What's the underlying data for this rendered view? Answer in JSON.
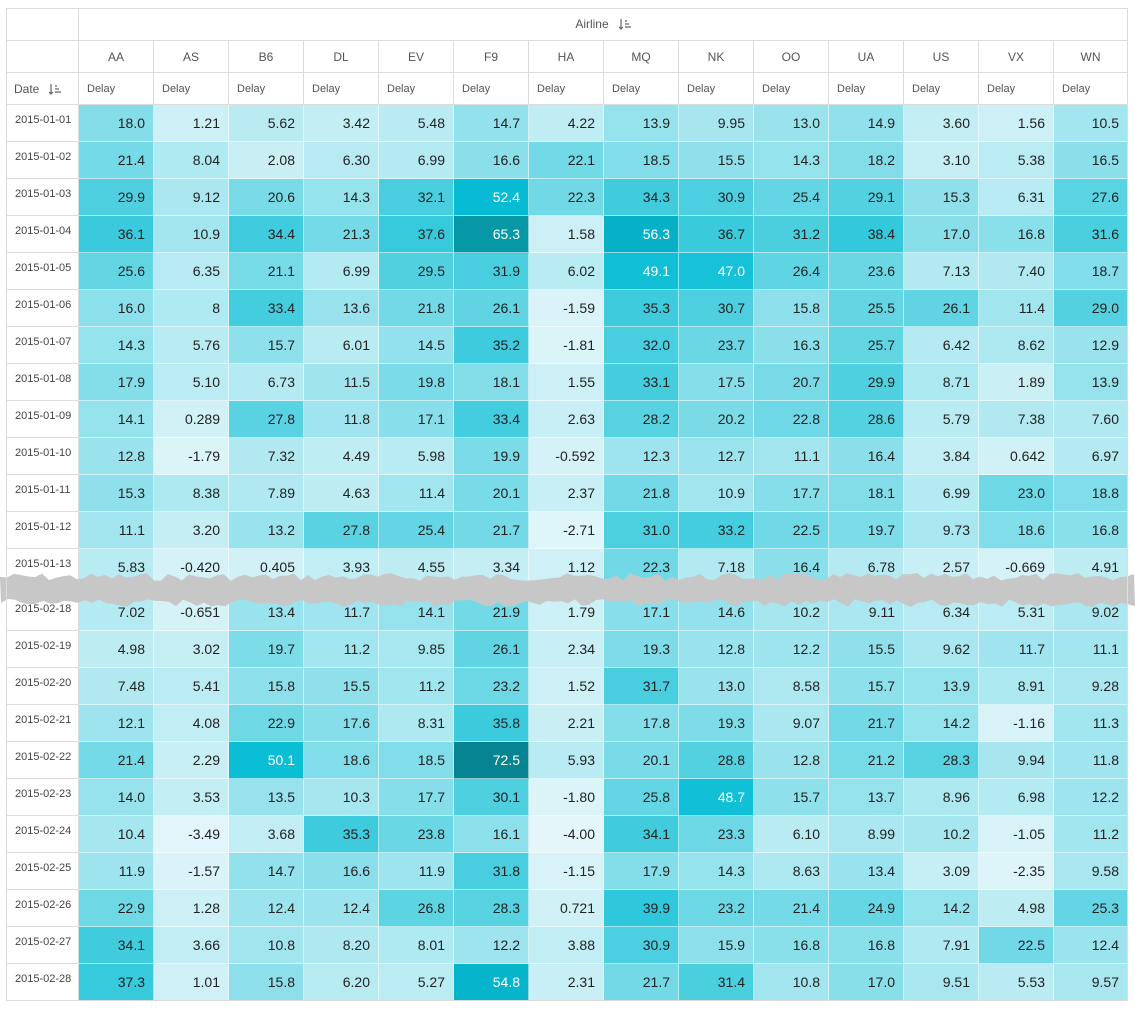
{
  "header": {
    "group_label": "Airline",
    "date_label": "Date"
  },
  "colors": {
    "low": "#e4f6fa",
    "mid": "#4fd0e0",
    "high": "#06bcd4",
    "max": "#07838f",
    "tear": "#c7c7c7"
  },
  "chart_data": {
    "type": "heatmap",
    "columns": [
      "AA",
      "AS",
      "B6",
      "DL",
      "EV",
      "F9",
      "HA",
      "MQ",
      "NK",
      "OO",
      "UA",
      "US",
      "VX",
      "WN"
    ],
    "measure_label": "Delay",
    "rows_top": [
      {
        "date": "2015-01-01",
        "values": [
          "18.0",
          "1.21",
          "5.62",
          "3.42",
          "5.48",
          "14.7",
          "4.22",
          "13.9",
          "9.95",
          "13.0",
          "14.9",
          "3.60",
          "1.56",
          "10.5"
        ]
      },
      {
        "date": "2015-01-02",
        "values": [
          "21.4",
          "8.04",
          "2.08",
          "6.30",
          "6.99",
          "16.6",
          "22.1",
          "18.5",
          "15.5",
          "14.3",
          "18.2",
          "3.10",
          "5.38",
          "16.5"
        ]
      },
      {
        "date": "2015-01-03",
        "values": [
          "29.9",
          "9.12",
          "20.6",
          "14.3",
          "32.1",
          "52.4",
          "22.3",
          "34.3",
          "30.9",
          "25.4",
          "29.1",
          "15.3",
          "6.31",
          "27.6"
        ]
      },
      {
        "date": "2015-01-04",
        "values": [
          "36.1",
          "10.9",
          "34.4",
          "21.3",
          "37.6",
          "65.3",
          "1.58",
          "56.3",
          "36.7",
          "31.2",
          "38.4",
          "17.0",
          "16.8",
          "31.6"
        ]
      },
      {
        "date": "2015-01-05",
        "values": [
          "25.6",
          "6.35",
          "21.1",
          "6.99",
          "29.5",
          "31.9",
          "6.02",
          "49.1",
          "47.0",
          "26.4",
          "23.6",
          "7.13",
          "7.40",
          "18.7"
        ]
      },
      {
        "date": "2015-01-06",
        "values": [
          "16.0",
          "8",
          "33.4",
          "13.6",
          "21.8",
          "26.1",
          "-1.59",
          "35.3",
          "30.7",
          "15.8",
          "25.5",
          "26.1",
          "11.4",
          "29.0"
        ]
      },
      {
        "date": "2015-01-07",
        "values": [
          "14.3",
          "5.76",
          "15.7",
          "6.01",
          "14.5",
          "35.2",
          "-1.81",
          "32.0",
          "23.7",
          "16.3",
          "25.7",
          "6.42",
          "8.62",
          "12.9"
        ]
      },
      {
        "date": "2015-01-08",
        "values": [
          "17.9",
          "5.10",
          "6.73",
          "11.5",
          "19.8",
          "18.1",
          "1.55",
          "33.1",
          "17.5",
          "20.7",
          "29.9",
          "8.71",
          "1.89",
          "13.9"
        ]
      },
      {
        "date": "2015-01-09",
        "values": [
          "14.1",
          "0.289",
          "27.8",
          "11.8",
          "17.1",
          "33.4",
          "2.63",
          "28.2",
          "20.2",
          "22.8",
          "28.6",
          "5.79",
          "7.38",
          "7.60"
        ]
      },
      {
        "date": "2015-01-10",
        "values": [
          "12.8",
          "-1.79",
          "7.32",
          "4.49",
          "5.98",
          "19.9",
          "-0.592",
          "12.3",
          "12.7",
          "11.1",
          "16.4",
          "3.84",
          "0.642",
          "6.97"
        ]
      },
      {
        "date": "2015-01-11",
        "values": [
          "15.3",
          "8.38",
          "7.89",
          "4.63",
          "11.4",
          "20.1",
          "2.37",
          "21.8",
          "10.9",
          "17.7",
          "18.1",
          "6.99",
          "23.0",
          "18.8"
        ]
      },
      {
        "date": "2015-01-12",
        "values": [
          "11.1",
          "3.20",
          "13.2",
          "27.8",
          "25.4",
          "21.7",
          "-2.71",
          "31.0",
          "33.2",
          "22.5",
          "19.7",
          "9.73",
          "18.6",
          "16.8"
        ]
      },
      {
        "date": "2015-01-13",
        "values": [
          "5.83",
          "-0.420",
          "0.405",
          "3.93",
          "4.55",
          "3.34",
          "1.12",
          "22.3",
          "7.18",
          "16.4",
          "6.78",
          "2.57",
          "-0.669",
          "4.91"
        ]
      }
    ],
    "rows_bottom": [
      {
        "date": "2015-02-18",
        "values": [
          "7.02",
          "-0.651",
          "13.4",
          "11.7",
          "14.1",
          "21.9",
          "1.79",
          "17.1",
          "14.6",
          "10.2",
          "9.11",
          "6.34",
          "5.31",
          "9.02"
        ]
      },
      {
        "date": "2015-02-19",
        "values": [
          "4.98",
          "3.02",
          "19.7",
          "11.2",
          "9.85",
          "26.1",
          "2.34",
          "19.3",
          "12.8",
          "12.2",
          "15.5",
          "9.62",
          "11.7",
          "11.1"
        ]
      },
      {
        "date": "2015-02-20",
        "values": [
          "7.48",
          "5.41",
          "15.8",
          "15.5",
          "11.2",
          "23.2",
          "1.52",
          "31.7",
          "13.0",
          "8.58",
          "15.7",
          "13.9",
          "8.91",
          "9.28"
        ]
      },
      {
        "date": "2015-02-21",
        "values": [
          "12.1",
          "4.08",
          "22.9",
          "17.6",
          "8.31",
          "35.8",
          "2.21",
          "17.8",
          "19.3",
          "9.07",
          "21.7",
          "14.2",
          "-1.16",
          "11.3"
        ]
      },
      {
        "date": "2015-02-22",
        "values": [
          "21.4",
          "2.29",
          "50.1",
          "18.6",
          "18.5",
          "72.5",
          "5.93",
          "20.1",
          "28.8",
          "12.8",
          "21.2",
          "28.3",
          "9.94",
          "11.8"
        ]
      },
      {
        "date": "2015-02-23",
        "values": [
          "14.0",
          "3.53",
          "13.5",
          "10.3",
          "17.7",
          "30.1",
          "-1.80",
          "25.8",
          "48.7",
          "15.7",
          "13.7",
          "8.96",
          "6.98",
          "12.2"
        ]
      },
      {
        "date": "2015-02-24",
        "values": [
          "10.4",
          "-3.49",
          "3.68",
          "35.3",
          "23.8",
          "16.1",
          "-4.00",
          "34.1",
          "23.3",
          "6.10",
          "8.99",
          "10.2",
          "-1.05",
          "11.2"
        ]
      },
      {
        "date": "2015-02-25",
        "values": [
          "11.9",
          "-1.57",
          "14.7",
          "16.6",
          "11.9",
          "31.8",
          "-1.15",
          "17.9",
          "14.3",
          "8.63",
          "13.4",
          "3.09",
          "-2.35",
          "9.58"
        ]
      },
      {
        "date": "2015-02-26",
        "values": [
          "22.9",
          "1.28",
          "12.4",
          "12.4",
          "26.8",
          "28.3",
          "0.721",
          "39.9",
          "23.2",
          "21.4",
          "24.9",
          "14.2",
          "4.98",
          "25.3"
        ]
      },
      {
        "date": "2015-02-27",
        "values": [
          "34.1",
          "3.66",
          "10.8",
          "8.20",
          "8.01",
          "12.2",
          "3.88",
          "30.9",
          "15.9",
          "16.8",
          "16.8",
          "7.91",
          "22.5",
          "12.4"
        ]
      },
      {
        "date": "2015-02-28",
        "values": [
          "37.3",
          "1.01",
          "15.8",
          "6.20",
          "5.27",
          "54.8",
          "2.31",
          "21.7",
          "31.4",
          "10.8",
          "17.0",
          "9.51",
          "5.53",
          "9.57"
        ]
      }
    ]
  }
}
